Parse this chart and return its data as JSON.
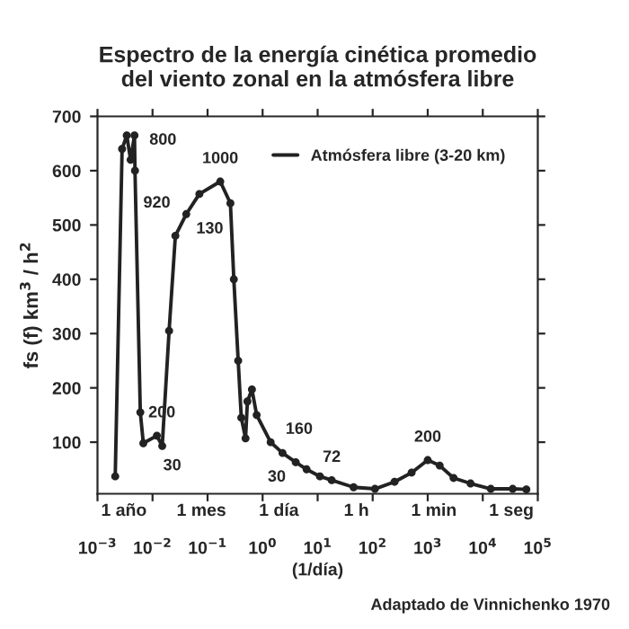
{
  "chart_data": {
    "type": "line",
    "title": "Espectro de la energía cinética promedio\ndel viento zonal en la atmósfera libre",
    "xlabel": "(1/día)",
    "ylabel": "fs (f) km$^{3}$ / h$^{2}$",
    "log": "x",
    "xlim": [
      0.001,
      100000
    ],
    "ylim": [
      5,
      700
    ],
    "xticks": [
      {
        "value": 0.001,
        "label": "10$^{−3}$"
      },
      {
        "value": 0.01,
        "label": "10$^{−2}$"
      },
      {
        "value": 0.1,
        "label": "10$^{−1}$"
      },
      {
        "value": 1,
        "label": "10$^{0}$"
      },
      {
        "value": 10,
        "label": "10$^{1}$"
      },
      {
        "value": 100,
        "label": "10$^{2}$"
      },
      {
        "value": 1000,
        "label": "10$^{3}$"
      },
      {
        "value": 10000,
        "label": "10$^{4}$"
      },
      {
        "value": 100000,
        "label": "10$^{5}$"
      }
    ],
    "yticks": [
      100,
      200,
      300,
      400,
      500,
      600,
      700
    ],
    "marker": "circle",
    "line_style": "solid",
    "legend": "top right",
    "grid": false,
    "series": [
      {
        "name": "Atmósfera libre (3-20 km)",
        "color": "#222222",
        "x": [
          0.0021,
          0.0028,
          0.0034,
          0.004,
          0.0047,
          0.0048,
          0.006,
          0.0068,
          0.012,
          0.015,
          0.02,
          0.026,
          0.041,
          0.071,
          0.17,
          0.26,
          0.3,
          0.36,
          0.41,
          0.49,
          0.53,
          0.64,
          0.78,
          1.4,
          2.3,
          4.0,
          6.3,
          11,
          18,
          45,
          110,
          250,
          510,
          1000,
          1650,
          2950,
          6000,
          14000,
          35000,
          62000
        ],
        "values": [
          37,
          640,
          665,
          620,
          665,
          600,
          155,
          98,
          112,
          93,
          305,
          480,
          520,
          557,
          580,
          540,
          400,
          250,
          145,
          107,
          175,
          197,
          150,
          100,
          80,
          63,
          50,
          37,
          30,
          17,
          14,
          27,
          44,
          67,
          57,
          34,
          24,
          14,
          14,
          13
        ]
      }
    ],
    "annotations": [
      {
        "text": "800",
        "x": 0.0038,
        "y": 665
      },
      {
        "text": "200",
        "x": 0.012,
        "y": 112
      },
      {
        "text": "30",
        "x": 0.015,
        "y": 93
      },
      {
        "text": "920",
        "x": 0.026,
        "y": 480
      },
      {
        "text": "130",
        "x": 0.041,
        "y": 520
      },
      {
        "text": "1000",
        "x": 0.17,
        "y": 580
      },
      {
        "text": "160",
        "x": 1.4,
        "y": 100
      },
      {
        "text": "30",
        "x": 4.0,
        "y": 63
      },
      {
        "text": "72",
        "x": 18,
        "y": 30
      },
      {
        "text": "200",
        "x": 1000,
        "y": 67
      },
      "1 año",
      "1 mes",
      "1 día",
      "1 h",
      "1 min",
      "1 seg",
      "Adaptado de Vinnichenko 1970"
    ]
  }
}
